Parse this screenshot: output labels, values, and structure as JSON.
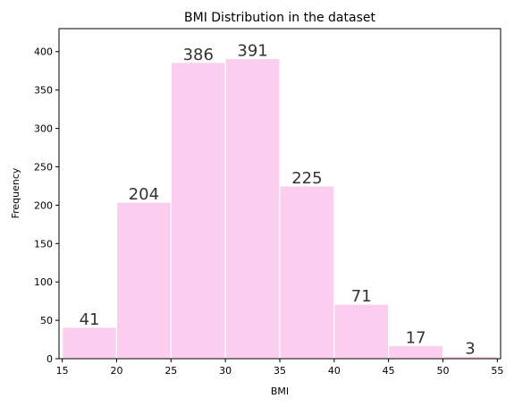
{
  "chart_data": {
    "type": "bar",
    "title": "BMI Distribution in the dataset",
    "xlabel": "BMI",
    "ylabel": "Frequency",
    "bin_edges": [
      15,
      20,
      25,
      30,
      35,
      40,
      45,
      50,
      55
    ],
    "values": [
      41,
      204,
      386,
      391,
      225,
      71,
      17,
      3
    ],
    "data_labels": [
      "41",
      "204",
      "386",
      "391",
      "225",
      "71",
      "17",
      "3"
    ],
    "xlim": [
      14.7,
      55.3
    ],
    "ylim": [
      0,
      430
    ],
    "x_ticks": [
      15,
      20,
      25,
      30,
      35,
      40,
      45,
      50,
      55
    ],
    "y_ticks": [
      0,
      50,
      100,
      150,
      200,
      250,
      300,
      350,
      400
    ],
    "bar_color": "#fbcdee",
    "bar_edge_color": "#ffffff",
    "grid": false,
    "legend": null
  }
}
